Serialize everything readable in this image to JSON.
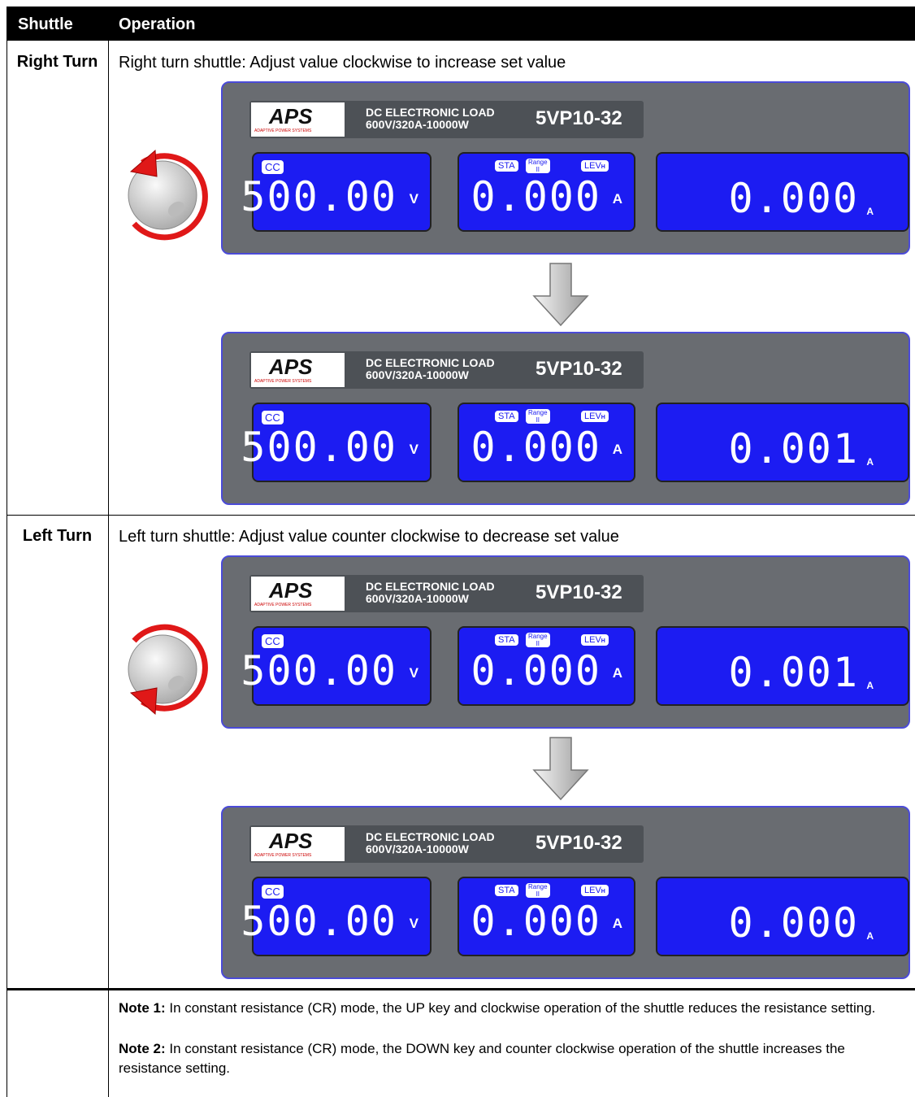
{
  "header": {
    "shuttle": "Shuttle",
    "operation": "Operation"
  },
  "rows": [
    {
      "shuttle": "Right Turn",
      "description": "Right turn shuttle: Adjust value clockwise to increase set value",
      "panels": [
        {
          "logo": "APS",
          "logo_sub": "ADAPTIVE POWER SYSTEMS",
          "product": "DC ELECTRONIC LOAD",
          "rating": "600V/320A-10000W",
          "model": "5VP10-32",
          "mode": "CC",
          "indicators": {
            "sta": "STA",
            "range": "Range",
            "range_level": "II",
            "lev": "LEV",
            "lev_level": "H"
          },
          "displays": [
            {
              "value": "500.00",
              "unit": "V"
            },
            {
              "value": "0.000",
              "unit": "A"
            },
            {
              "value": "0.000",
              "unit": "A"
            }
          ]
        },
        {
          "logo": "APS",
          "logo_sub": "ADAPTIVE POWER SYSTEMS",
          "product": "DC ELECTRONIC LOAD",
          "rating": "600V/320A-10000W",
          "model": "5VP10-32",
          "mode": "CC",
          "indicators": {
            "sta": "STA",
            "range": "Range",
            "range_level": "II",
            "lev": "LEV",
            "lev_level": "H"
          },
          "displays": [
            {
              "value": "500.00",
              "unit": "V"
            },
            {
              "value": "0.000",
              "unit": "A"
            },
            {
              "value": "0.001",
              "unit": "A"
            }
          ]
        }
      ]
    },
    {
      "shuttle": "Left Turn",
      "description": "Left turn shuttle: Adjust value counter clockwise to decrease set value",
      "panels": [
        {
          "logo": "APS",
          "logo_sub": "ADAPTIVE POWER SYSTEMS",
          "product": "DC ELECTRONIC LOAD",
          "rating": "600V/320A-10000W",
          "model": "5VP10-32",
          "mode": "CC",
          "indicators": {
            "sta": "STA",
            "range": "Range",
            "range_level": "II",
            "lev": "LEV",
            "lev_level": "H"
          },
          "displays": [
            {
              "value": "500.00",
              "unit": "V"
            },
            {
              "value": "0.000",
              "unit": "A"
            },
            {
              "value": "0.001",
              "unit": "A"
            }
          ]
        },
        {
          "logo": "APS",
          "logo_sub": "ADAPTIVE POWER SYSTEMS",
          "product": "DC ELECTRONIC LOAD",
          "rating": "600V/320A-10000W",
          "model": "5VP10-32",
          "mode": "CC",
          "indicators": {
            "sta": "STA",
            "range": "Range",
            "range_level": "II",
            "lev": "LEV",
            "lev_level": "H"
          },
          "displays": [
            {
              "value": "500.00",
              "unit": "V"
            },
            {
              "value": "0.000",
              "unit": "A"
            },
            {
              "value": "0.000",
              "unit": "A"
            }
          ]
        }
      ]
    }
  ],
  "notes": [
    {
      "label": "Note 1:",
      "text": "In constant resistance (CR) mode, the UP key and clockwise operation of the shuttle reduces the resistance setting."
    },
    {
      "label": "Note 2:",
      "text": "In constant resistance (CR) mode, the DOWN key and counter clockwise operation of the shuttle increases the resistance setting."
    }
  ]
}
